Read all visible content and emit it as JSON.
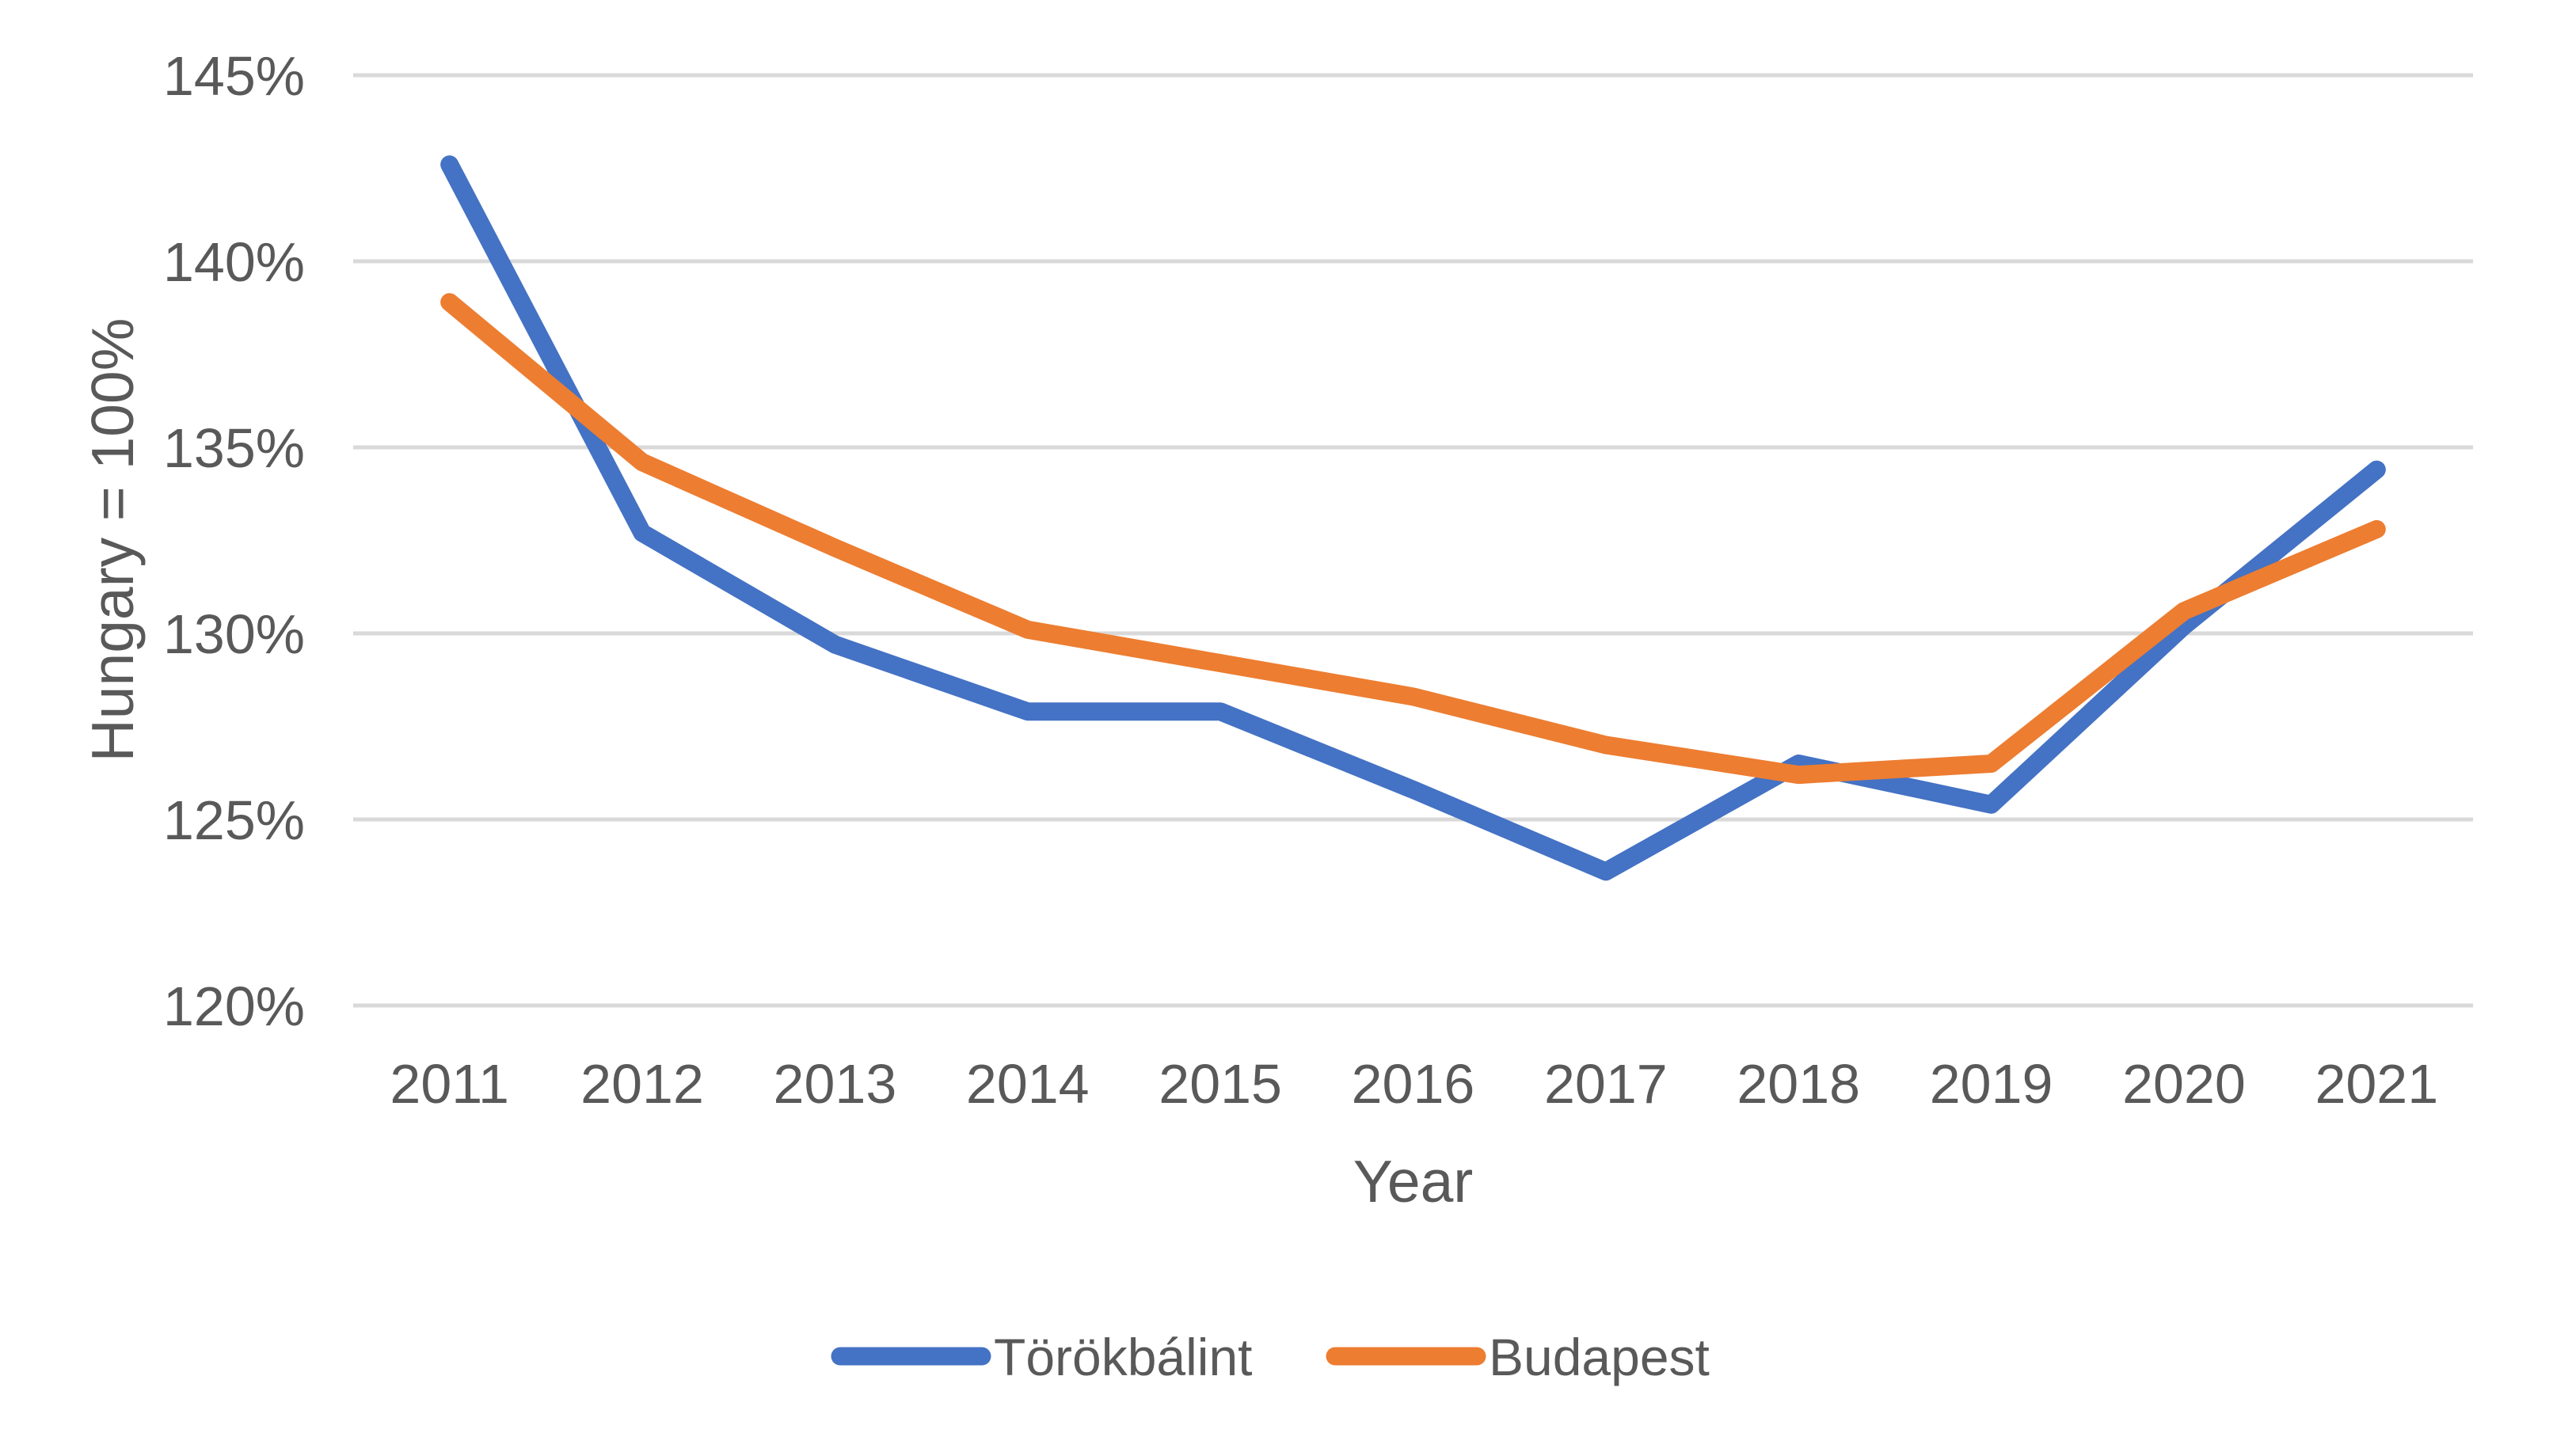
{
  "chart_data": {
    "type": "line",
    "title": "",
    "categories": [
      "2011",
      "2012",
      "2013",
      "2014",
      "2015",
      "2016",
      "2017",
      "2018",
      "2019",
      "2020",
      "2021"
    ],
    "series": [
      {
        "name": "Törökbálint",
        "color": "#4472C4",
        "values": [
          142.6,
          132.7,
          129.7,
          127.9,
          127.9,
          125.8,
          123.6,
          126.5,
          125.4,
          130.2,
          134.4
        ]
      },
      {
        "name": "Budapest",
        "color": "#ED7D31",
        "values": [
          138.9,
          134.6,
          132.3,
          130.1,
          129.2,
          128.3,
          127.0,
          126.2,
          126.5,
          130.6,
          132.8
        ]
      }
    ],
    "xlabel": "Year",
    "ylabel": "Hungary = 100%",
    "ylim": [
      120,
      145
    ],
    "ytick_step": 5,
    "ytick_suffix": "%",
    "grid": true,
    "legend_position": "bottom"
  },
  "style": {
    "background": "#FFFFFF",
    "text_color": "#595959",
    "grid_color": "#D9D9D9",
    "series_colors": [
      "#4472C4",
      "#ED7D31"
    ]
  }
}
